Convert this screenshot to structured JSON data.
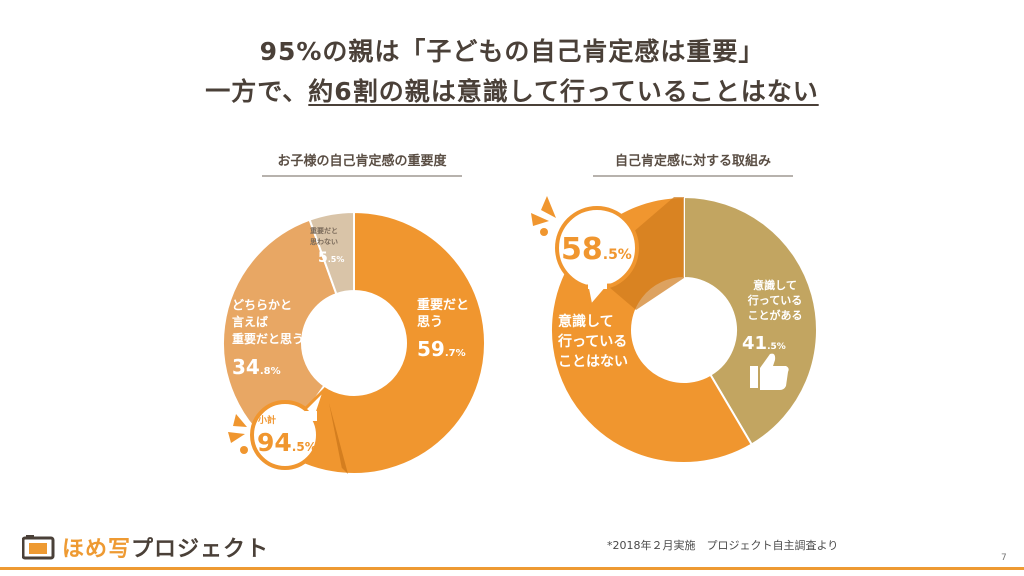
{
  "headline": {
    "line1": "95%の親は「子どもの自己肯定感は重要」",
    "line2_prefix": "一方で、",
    "line2_underlined": "約6割の親は意識して行っていることはない"
  },
  "colors": {
    "orange": "#f0962f",
    "light_orange": "#e8a764",
    "beige": "#d9c4a8",
    "olive": "#c2a561",
    "dark_orange": "#cf7a1c"
  },
  "chart_data": [
    {
      "type": "pie",
      "title": "お子様の自己肯定感の重要度",
      "slices": [
        {
          "label_lines": [
            "重要だと",
            "思う"
          ],
          "int": "59",
          "dec": ".7",
          "unit": "%",
          "value": 59.7
        },
        {
          "label_lines": [
            "どちらかと",
            "言えば",
            "重要だと思う"
          ],
          "int": "34",
          "dec": ".8",
          "unit": "%",
          "value": 34.8
        },
        {
          "label_lines": [
            "重要だと",
            "思わない"
          ],
          "int": "5",
          "dec": ".5",
          "unit": "%",
          "value": 5.5
        }
      ],
      "callout": {
        "label": "小計",
        "int": "94",
        "dec": ".5",
        "unit": "%",
        "value": 94.5
      }
    },
    {
      "type": "pie",
      "title": "自己肯定感に対する取組み",
      "slices": [
        {
          "label_lines": [
            "意識して",
            "行っている",
            "ことがある"
          ],
          "int": "41",
          "dec": ".5",
          "unit": "%",
          "value": 41.5
        },
        {
          "label_lines": [
            "意識して",
            "行っている",
            "ことはない"
          ],
          "value": 58.5
        }
      ],
      "callout": {
        "int": "58",
        "dec": ".5",
        "unit": "%",
        "value": 58.5
      }
    }
  ],
  "logo": {
    "text_part1": "ほめ",
    "text_part2": "写",
    "text_part3": "プロジェクト"
  },
  "footnote": "*2018年２月実施　プロジェクト自主調査より",
  "page_number": "7"
}
